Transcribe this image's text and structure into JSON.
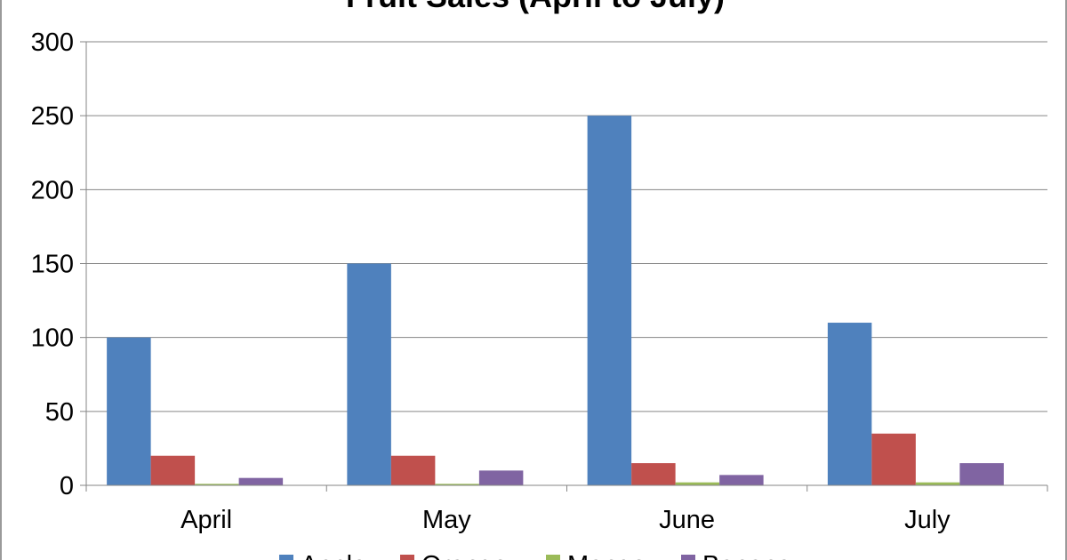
{
  "chart_data": {
    "type": "bar",
    "title": "Fruit Sales (April to July)",
    "categories": [
      "April",
      "May",
      "June",
      "July"
    ],
    "series": [
      {
        "name": "Apple",
        "values": [
          100,
          150,
          250,
          110
        ],
        "color": "#4F81BD"
      },
      {
        "name": "Orange",
        "values": [
          20,
          20,
          15,
          35
        ],
        "color": "#C0504D"
      },
      {
        "name": "Mango",
        "values": [
          1,
          1,
          2,
          2
        ],
        "color": "#9BBB59"
      },
      {
        "name": "Banana",
        "values": [
          5,
          10,
          7,
          15
        ],
        "color": "#8064A2"
      }
    ],
    "ylim": [
      0,
      300
    ],
    "yticks": [
      0,
      50,
      100,
      150,
      200,
      250,
      300
    ],
    "grid": true,
    "legend_position": "bottom"
  }
}
